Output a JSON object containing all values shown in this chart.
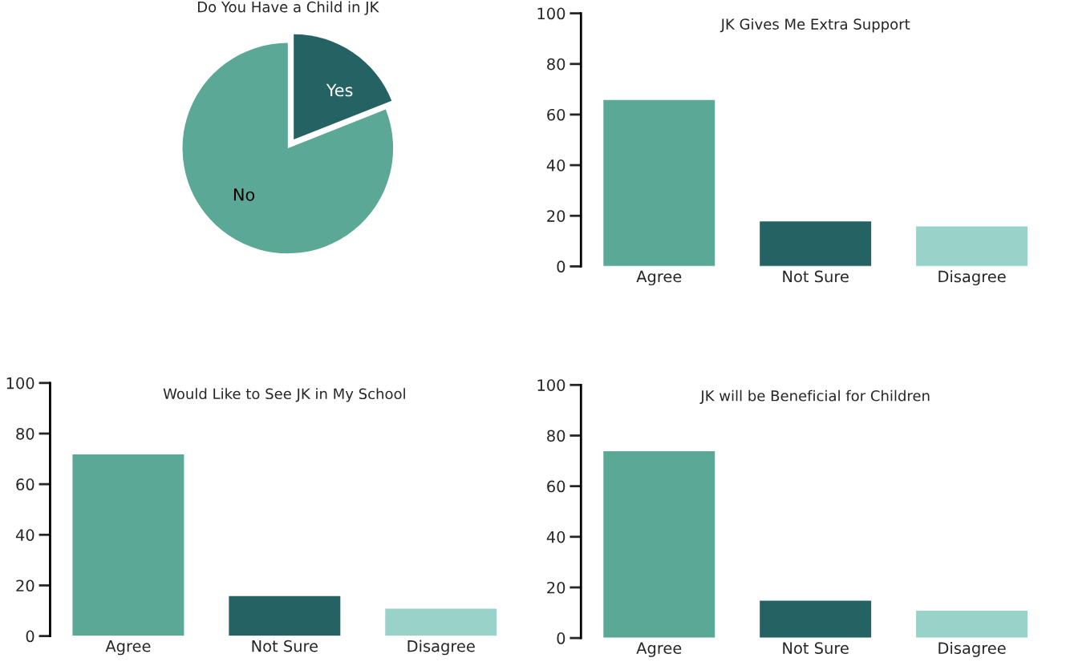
{
  "chart_data": [
    {
      "type": "pie",
      "title": "Do You Have a Child in JK",
      "categories": [
        "Yes",
        "No"
      ],
      "values": [
        19,
        81
      ],
      "colors": [
        "#246264",
        "#5ca896"
      ]
    },
    {
      "type": "bar",
      "title": "JK Gives Me Extra Support",
      "categories": [
        "Agree",
        "Not Sure",
        "Disagree"
      ],
      "values": [
        66,
        18,
        16
      ],
      "colors": [
        "#5ca896",
        "#246264",
        "#98d2c8"
      ],
      "ylim": [
        0,
        100
      ],
      "yticks": [
        0,
        20,
        40,
        60,
        80,
        100
      ],
      "grid": false
    },
    {
      "type": "bar",
      "title": "Would Like to See JK in My School",
      "categories": [
        "Agree",
        "Not Sure",
        "Disagree"
      ],
      "values": [
        72,
        16,
        11
      ],
      "colors": [
        "#5ca896",
        "#246264",
        "#98d2c8"
      ],
      "ylim": [
        0,
        100
      ],
      "yticks": [
        0,
        20,
        40,
        60,
        80,
        100
      ],
      "grid": false
    },
    {
      "type": "bar",
      "title": "JK will be Beneficial for Children",
      "categories": [
        "Agree",
        "Not Sure",
        "Disagree"
      ],
      "values": [
        74,
        15,
        11
      ],
      "colors": [
        "#5ca896",
        "#246264",
        "#98d2c8"
      ],
      "ylim": [
        0,
        100
      ],
      "yticks": [
        0,
        20,
        40,
        60,
        80,
        100
      ],
      "grid": false
    }
  ]
}
